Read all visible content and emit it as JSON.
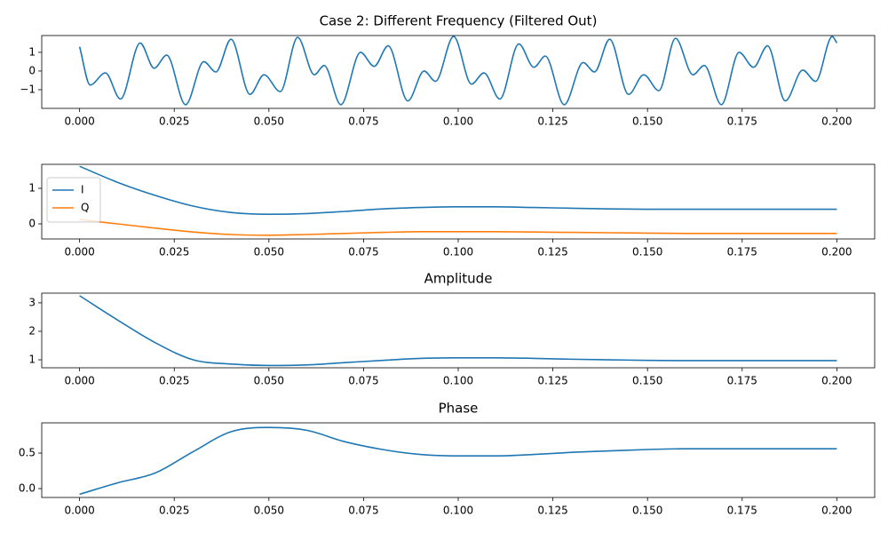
{
  "chart_data": [
    {
      "type": "line",
      "title": "Case 2: Different Frequency (Filtered Out)",
      "color": "#1f77b4",
      "x": [
        0,
        0.0028,
        0.0068,
        0.0108,
        0.016,
        0.0197,
        0.023,
        0.028,
        0.0328,
        0.036,
        0.04,
        0.045,
        0.0487,
        0.053,
        0.0576,
        0.062,
        0.0646,
        0.069,
        0.0742,
        0.0778,
        0.0815,
        0.0867,
        0.091,
        0.094,
        0.0988,
        0.1035,
        0.1068,
        0.111,
        0.116,
        0.12,
        0.123,
        0.128,
        0.133,
        0.136,
        0.14,
        0.145,
        0.149,
        0.153,
        0.1574,
        0.162,
        0.165,
        0.1695,
        0.1742,
        0.178,
        0.1817,
        0.1864,
        0.191,
        0.1944,
        0.1988,
        0.2
      ],
      "values": [
        1.3,
        -0.75,
        -0.1,
        -1.5,
        1.5,
        0.15,
        0.85,
        -1.8,
        0.5,
        -0.05,
        1.7,
        -1.25,
        -0.2,
        -1.1,
        1.8,
        -0.2,
        0.3,
        -1.8,
        1.0,
        0.25,
        1.35,
        -1.6,
        0.0,
        -0.55,
        1.85,
        -0.7,
        -0.1,
        -1.5,
        1.45,
        0.2,
        0.8,
        -1.8,
        0.45,
        -0.05,
        1.7,
        -1.25,
        -0.2,
        -1.05,
        1.75,
        -0.2,
        0.3,
        -1.8,
        1.0,
        0.2,
        1.35,
        -1.6,
        0.05,
        -0.55,
        1.85,
        1.5
      ],
      "xlim": [
        -0.01,
        0.21
      ],
      "ylim": [
        -2.0,
        1.9
      ],
      "xticks": [
        {
          "value": 0,
          "label": "0.000"
        },
        {
          "value": 0.025,
          "label": "0.025"
        },
        {
          "value": 0.05,
          "label": "0.050"
        },
        {
          "value": 0.075,
          "label": "0.075"
        },
        {
          "value": 0.1,
          "label": "0.100"
        },
        {
          "value": 0.125,
          "label": "0.125"
        },
        {
          "value": 0.15,
          "label": "0.150"
        },
        {
          "value": 0.175,
          "label": "0.175"
        },
        {
          "value": 0.2,
          "label": "0.200"
        }
      ],
      "yticks": [
        {
          "value": -1,
          "label": "−1"
        },
        0,
        1
      ],
      "grid": false
    },
    {
      "type": "line",
      "legend": "upper left",
      "x": [
        0,
        0.01,
        0.02,
        0.03,
        0.04,
        0.05,
        0.06,
        0.07,
        0.08,
        0.09,
        0.1,
        0.11,
        0.12,
        0.13,
        0.14,
        0.15,
        0.16,
        0.17,
        0.18,
        0.19,
        0.2
      ],
      "series": [
        {
          "name": "I",
          "color": "#1f77b4",
          "values": [
            1.62,
            1.17,
            0.8,
            0.5,
            0.32,
            0.27,
            0.29,
            0.35,
            0.42,
            0.46,
            0.48,
            0.48,
            0.46,
            0.44,
            0.42,
            0.41,
            0.41,
            0.41,
            0.41,
            0.41,
            0.41
          ]
        },
        {
          "name": "Q",
          "color": "#ff7f0e",
          "values": [
            0.12,
            0.0,
            -0.12,
            -0.23,
            -0.3,
            -0.32,
            -0.3,
            -0.27,
            -0.24,
            -0.22,
            -0.22,
            -0.22,
            -0.23,
            -0.24,
            -0.25,
            -0.26,
            -0.27,
            -0.27,
            -0.27,
            -0.27,
            -0.27
          ]
        }
      ],
      "xlim": [
        -0.01,
        0.21
      ],
      "ylim": [
        -0.425,
        1.675
      ],
      "xticks": [
        {
          "value": 0,
          "label": "0.000"
        },
        {
          "value": 0.025,
          "label": "0.025"
        },
        {
          "value": 0.05,
          "label": "0.050"
        },
        {
          "value": 0.075,
          "label": "0.075"
        },
        {
          "value": 0.1,
          "label": "0.100"
        },
        {
          "value": 0.125,
          "label": "0.125"
        },
        {
          "value": 0.15,
          "label": "0.150"
        },
        {
          "value": 0.175,
          "label": "0.175"
        },
        {
          "value": 0.2,
          "label": "0.200"
        }
      ],
      "yticks": [
        0,
        1
      ],
      "grid": false
    },
    {
      "type": "line",
      "title": "Amplitude",
      "color": "#1f77b4",
      "x": [
        0,
        0.01,
        0.02,
        0.03,
        0.04,
        0.05,
        0.06,
        0.07,
        0.08,
        0.09,
        0.1,
        0.11,
        0.12,
        0.13,
        0.14,
        0.15,
        0.16,
        0.17,
        0.18,
        0.19,
        0.2
      ],
      "values": [
        3.25,
        2.4,
        1.6,
        1.0,
        0.85,
        0.8,
        0.82,
        0.9,
        0.98,
        1.05,
        1.07,
        1.07,
        1.05,
        1.02,
        1.0,
        0.98,
        0.97,
        0.97,
        0.97,
        0.97,
        0.97
      ],
      "xlim": [
        -0.01,
        0.21
      ],
      "ylim": [
        0.72,
        3.34
      ],
      "xticks": [
        {
          "value": 0,
          "label": "0.000"
        },
        {
          "value": 0.025,
          "label": "0.025"
        },
        {
          "value": 0.05,
          "label": "0.050"
        },
        {
          "value": 0.075,
          "label": "0.075"
        },
        {
          "value": 0.1,
          "label": "0.100"
        },
        {
          "value": 0.125,
          "label": "0.125"
        },
        {
          "value": 0.15,
          "label": "0.150"
        },
        {
          "value": 0.175,
          "label": "0.175"
        },
        {
          "value": 0.2,
          "label": "0.200"
        }
      ],
      "yticks": [
        1,
        2,
        3
      ],
      "grid": false
    },
    {
      "type": "line",
      "title": "Phase",
      "color": "#1f77b4",
      "x": [
        0,
        0.01,
        0.02,
        0.03,
        0.04,
        0.05,
        0.06,
        0.07,
        0.08,
        0.09,
        0.1,
        0.11,
        0.12,
        0.13,
        0.14,
        0.15,
        0.16,
        0.17,
        0.18,
        0.19,
        0.2
      ],
      "values": [
        -0.08,
        0.08,
        0.22,
        0.52,
        0.8,
        0.86,
        0.82,
        0.66,
        0.55,
        0.48,
        0.46,
        0.46,
        0.48,
        0.51,
        0.53,
        0.55,
        0.56,
        0.56,
        0.56,
        0.56,
        0.56
      ],
      "xlim": [
        -0.01,
        0.21
      ],
      "ylim": [
        -0.125,
        0.925
      ],
      "xticks": [
        {
          "value": 0,
          "label": "0.000"
        },
        {
          "value": 0.025,
          "label": "0.025"
        },
        {
          "value": 0.05,
          "label": "0.050"
        },
        {
          "value": 0.075,
          "label": "0.075"
        },
        {
          "value": 0.1,
          "label": "0.100"
        },
        {
          "value": 0.125,
          "label": "0.125"
        },
        {
          "value": 0.15,
          "label": "0.150"
        },
        {
          "value": 0.175,
          "label": "0.175"
        },
        {
          "value": 0.2,
          "label": "0.200"
        }
      ],
      "yticks": [
        {
          "value": 0,
          "label": "0.0"
        },
        {
          "value": 0.5,
          "label": "0.5"
        }
      ],
      "grid": false
    }
  ]
}
